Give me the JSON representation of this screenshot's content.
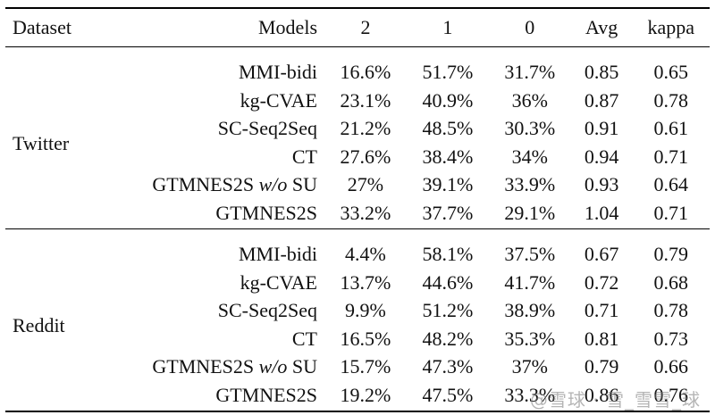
{
  "table": {
    "columns": [
      "Dataset",
      "Models",
      "2",
      "1",
      "0",
      "Avg",
      "kappa"
    ],
    "groups": [
      {
        "dataset": "Twitter",
        "rows": [
          {
            "model": "MMI-bidi",
            "suffix": "",
            "c2": "16.6%",
            "c1": "51.7%",
            "c0": "31.7%",
            "avg": "0.85",
            "kappa": "0.65"
          },
          {
            "model": "kg-CVAE",
            "suffix": "",
            "c2": "23.1%",
            "c1": "40.9%",
            "c0": "36%",
            "avg": "0.87",
            "kappa": "0.78"
          },
          {
            "model": "SC-Seq2Seq",
            "suffix": "",
            "c2": "21.2%",
            "c1": "48.5%",
            "c0": "30.3%",
            "avg": "0.91",
            "kappa": "0.61"
          },
          {
            "model": "CT",
            "suffix": "",
            "c2": "27.6%",
            "c1": "38.4%",
            "c0": "34%",
            "avg": "0.94",
            "kappa": "0.71"
          },
          {
            "model": "GTMNES2S ",
            "mid": "w/o",
            "suffix": " SU",
            "c2": "27%",
            "c1": "39.1%",
            "c0": "33.9%",
            "avg": "0.93",
            "kappa": "0.64"
          },
          {
            "model": "GTMNES2S",
            "suffix": "",
            "c2": "33.2%",
            "c1": "37.7%",
            "c0": "29.1%",
            "avg": "1.04",
            "kappa": "0.71"
          }
        ]
      },
      {
        "dataset": "Reddit",
        "rows": [
          {
            "model": "MMI-bidi",
            "suffix": "",
            "c2": "4.4%",
            "c1": "58.1%",
            "c0": "37.5%",
            "avg": "0.67",
            "kappa": "0.79"
          },
          {
            "model": "kg-CVAE",
            "suffix": "",
            "c2": "13.7%",
            "c1": "44.6%",
            "c0": "41.7%",
            "avg": "0.72",
            "kappa": "0.68"
          },
          {
            "model": "SC-Seq2Seq",
            "suffix": "",
            "c2": "9.9%",
            "c1": "51.2%",
            "c0": "38.9%",
            "avg": "0.71",
            "kappa": "0.78"
          },
          {
            "model": "CT",
            "suffix": "",
            "c2": "16.5%",
            "c1": "48.2%",
            "c0": "35.3%",
            "avg": "0.81",
            "kappa": "0.73"
          },
          {
            "model": "GTMNES2S ",
            "mid": "w/o",
            "suffix": " SU",
            "c2": "15.7%",
            "c1": "47.3%",
            "c0": "37%",
            "avg": "0.79",
            "kappa": "0.66"
          },
          {
            "model": "GTMNES2S",
            "suffix": "",
            "c2": "19.2%",
            "c1": "47.5%",
            "c0": "33.3%",
            "avg": "0.86",
            "kappa": "0.76"
          }
        ]
      }
    ]
  },
  "watermark": "@雪球 · 雪_雪雪_球"
}
